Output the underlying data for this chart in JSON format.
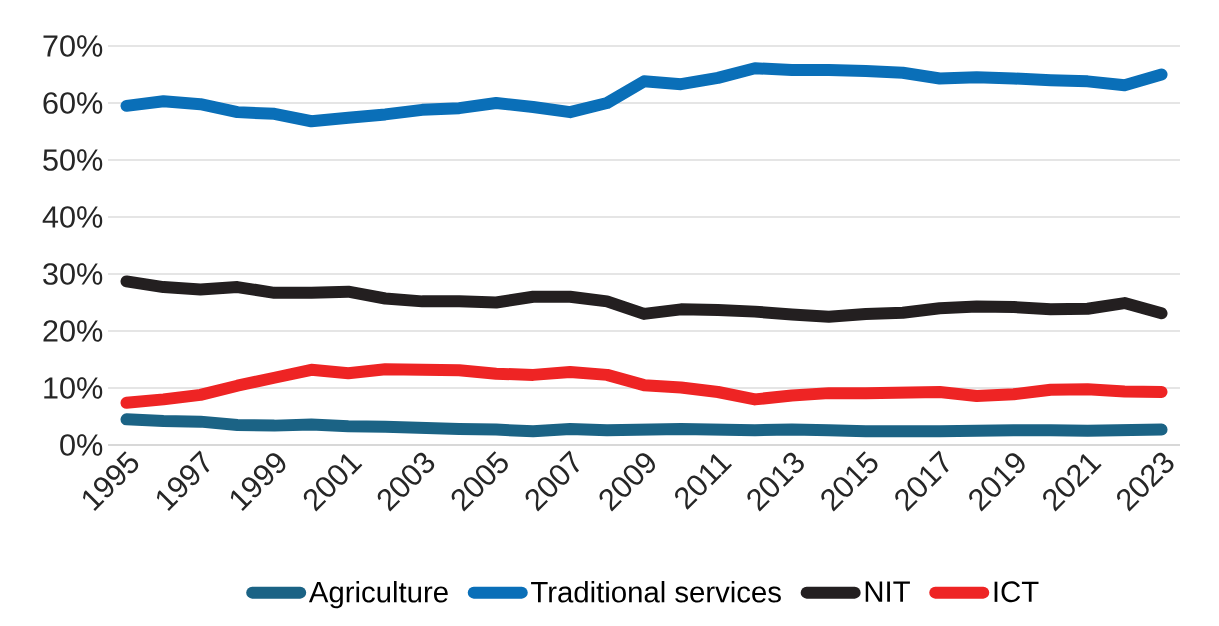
{
  "chart_data": {
    "type": "line",
    "categories": [
      "1995",
      null,
      "1997",
      null,
      "1999",
      null,
      "2001",
      null,
      "2003",
      null,
      "2005",
      null,
      "2007",
      null,
      "2009",
      null,
      "2011",
      null,
      "2013",
      null,
      "2015",
      null,
      "2017",
      null,
      "2019",
      null,
      "2021",
      null,
      "2023"
    ],
    "series": [
      {
        "name": "Agriculture",
        "color": "#1b6385",
        "values": [
          4.5,
          4.2,
          4.1,
          3.5,
          3.4,
          3.6,
          3.3,
          3.2,
          3.0,
          2.8,
          2.7,
          2.4,
          2.8,
          2.6,
          2.7,
          2.8,
          2.7,
          2.6,
          2.7,
          2.6,
          2.4,
          2.4,
          2.4,
          2.5,
          2.6,
          2.6,
          2.5,
          2.6,
          2.7
        ]
      },
      {
        "name": "Traditional services",
        "color": "#0a6fb8",
        "values": [
          59.5,
          60.3,
          59.8,
          58.4,
          58.1,
          56.8,
          57.4,
          58.0,
          58.8,
          59.1,
          60.0,
          59.3,
          58.4,
          60.0,
          63.8,
          63.3,
          64.4,
          66.1,
          65.8,
          65.8,
          65.6,
          65.3,
          64.3,
          64.5,
          64.3,
          64.0,
          63.8,
          63.1,
          65.0
        ]
      },
      {
        "name": "NIT",
        "color": "#231f20",
        "values": [
          28.7,
          27.7,
          27.3,
          27.7,
          26.7,
          26.7,
          26.9,
          25.7,
          25.2,
          25.2,
          25.0,
          26.0,
          26.0,
          25.2,
          23.0,
          23.8,
          23.7,
          23.4,
          22.9,
          22.5,
          23.0,
          23.2,
          24.0,
          24.3,
          24.2,
          23.8,
          23.9,
          24.9,
          23.1
        ]
      },
      {
        "name": "ICT",
        "color": "#ee2424",
        "values": [
          7.4,
          8.0,
          8.8,
          10.4,
          11.8,
          13.2,
          12.6,
          13.3,
          13.2,
          13.1,
          12.5,
          12.3,
          12.8,
          12.3,
          10.5,
          10.1,
          9.3,
          8.0,
          8.7,
          9.1,
          9.1,
          9.2,
          9.3,
          8.6,
          8.9,
          9.7,
          9.8,
          9.4,
          9.3
        ]
      }
    ],
    "ylim": [
      0,
      70
    ],
    "yticks": [
      {
        "value": 0,
        "label": "0%"
      },
      {
        "value": 10,
        "label": "10%"
      },
      {
        "value": 20,
        "label": "20%"
      },
      {
        "value": 30,
        "label": "30%"
      },
      {
        "value": 40,
        "label": "40%"
      },
      {
        "value": 50,
        "label": "50%"
      },
      {
        "value": 60,
        "label": "60%"
      },
      {
        "value": 70,
        "label": "70%"
      }
    ],
    "grid": "y",
    "legend": "bottom",
    "marker": "none",
    "line_style": "solid"
  }
}
